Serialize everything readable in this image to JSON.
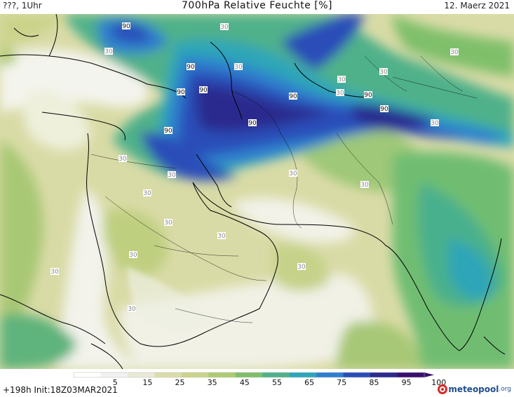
{
  "header": {
    "left": "???, 1Uhr",
    "title": "700hPa Relative Feuchte [%]",
    "date": "12. Maerz 2021"
  },
  "footer": {
    "forecast": "+198h Init:18Z03MAR2021",
    "logo_word": "meteopool",
    "logo_tld": ".org"
  },
  "colorbar": {
    "tick_labels": [
      "5",
      "15",
      "25",
      "35",
      "45",
      "55",
      "65",
      "75",
      "85",
      "95",
      "100"
    ],
    "colors": [
      "#ffffff",
      "#f2f2f2",
      "#e9ead6",
      "#dcdcaa",
      "#cbd38a",
      "#aecb72",
      "#7fbf6a",
      "#4fb18a",
      "#2da6b8",
      "#2f7fce",
      "#2a4db8",
      "#2b2a8e",
      "#3a0f6e"
    ]
  },
  "map": {
    "field_labels": [
      {
        "text": "90"
      },
      {
        "text": "30"
      },
      {
        "text": "30"
      },
      {
        "text": "90"
      },
      {
        "text": "30"
      },
      {
        "text": "90"
      },
      {
        "text": "90"
      },
      {
        "text": "90"
      },
      {
        "text": "30"
      },
      {
        "text": "90"
      },
      {
        "text": "90"
      },
      {
        "text": "30"
      },
      {
        "text": "90"
      },
      {
        "text": "30"
      },
      {
        "text": "30"
      },
      {
        "text": "30"
      },
      {
        "text": "30"
      },
      {
        "text": "30"
      },
      {
        "text": "30"
      },
      {
        "text": "30"
      },
      {
        "text": "30"
      },
      {
        "text": "30"
      },
      {
        "text": "30"
      },
      {
        "text": "30"
      },
      {
        "text": "90"
      },
      {
        "text": "30"
      },
      {
        "text": "30"
      },
      {
        "text": "30"
      }
    ]
  }
}
